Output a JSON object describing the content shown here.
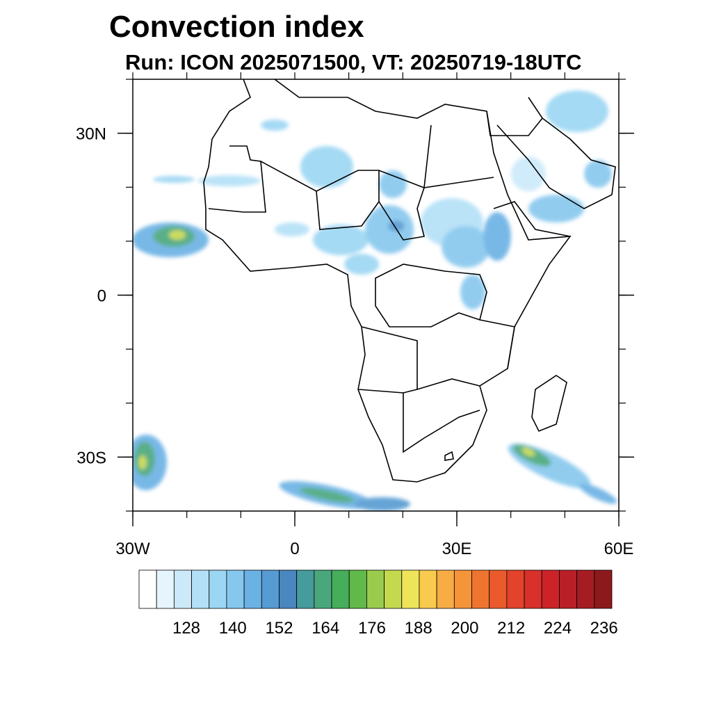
{
  "title": "Convection index",
  "subtitle": "Run: ICON 2025071500,  VT: 20250719-18UTC",
  "map": {
    "lon_range": [
      -30,
      60
    ],
    "lat_range": [
      -40,
      40
    ],
    "x_ticks": [
      {
        "value": -30,
        "label": "30W"
      },
      {
        "value": 0,
        "label": "0"
      },
      {
        "value": 30,
        "label": "30E"
      },
      {
        "value": 60,
        "label": "60E"
      }
    ],
    "y_ticks": [
      {
        "value": 30,
        "label": "30N"
      },
      {
        "value": 0,
        "label": "0"
      },
      {
        "value": -30,
        "label": "30S"
      }
    ],
    "minor_lon_step": 10,
    "minor_lat_step": 10
  },
  "colorbar": {
    "colors": [
      "#ffffff",
      "#e6f5fd",
      "#cbe9f9",
      "#b3e0f7",
      "#9bd6f3",
      "#86c7ee",
      "#6ab1e4",
      "#569bd2",
      "#4a86bf",
      "#469b9c",
      "#4aa77c",
      "#46ad5a",
      "#60b94a",
      "#9bcb4d",
      "#c5d94f",
      "#eee45a",
      "#f8cb4f",
      "#f7ad44",
      "#f59438",
      "#ef7430",
      "#ea5a2c",
      "#e2432a",
      "#d8302b",
      "#cc2329",
      "#b91f27",
      "#a61c23",
      "#8c1a1c"
    ],
    "tick_labels": [
      "128",
      "140",
      "152",
      "164",
      "176",
      "188",
      "200",
      "212",
      "224",
      "236"
    ]
  },
  "legend_note": ""
}
